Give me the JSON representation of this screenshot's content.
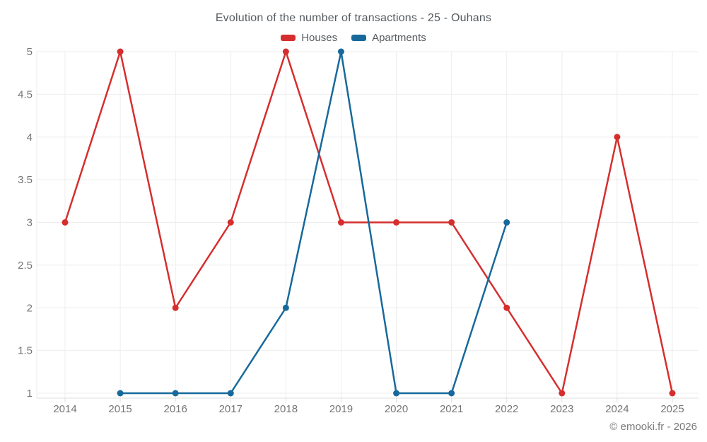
{
  "title": "Evolution of the number of transactions - 25 - Ouhans",
  "footer": {
    "copyright": "© emooki.fr - 2026"
  },
  "colors": {
    "houses": "#d62e2e",
    "apartments": "#17699b",
    "grid": "#ededed",
    "axis_border": "#dedede",
    "tick_text": "#757575",
    "title_text": "#565b60"
  },
  "chart_data": {
    "type": "line",
    "title": "Evolution of the number of transactions - 25 - Ouhans",
    "x": [
      2014,
      2015,
      2016,
      2017,
      2018,
      2019,
      2020,
      2021,
      2022,
      2023,
      2024,
      2025
    ],
    "series": [
      {
        "name": "Houses",
        "color": "#d62e2e",
        "values": [
          3,
          5,
          2,
          3,
          5,
          3,
          3,
          3,
          2,
          1,
          4,
          1
        ]
      },
      {
        "name": "Apartments",
        "color": "#17699b",
        "values": [
          null,
          1,
          1,
          1,
          2,
          5,
          1,
          1,
          3,
          null,
          null,
          null
        ]
      }
    ],
    "xlabel": "",
    "ylabel": "",
    "ylim": [
      1,
      5
    ],
    "yticks": [
      1,
      1.5,
      2,
      2.5,
      3,
      3.5,
      4,
      4.5,
      5
    ],
    "grid": true,
    "legend_position": "top",
    "marker_radius": 4.5,
    "line_width": 2.5
  },
  "legend": {
    "items": [
      {
        "label": "Houses"
      },
      {
        "label": "Apartments"
      }
    ]
  }
}
